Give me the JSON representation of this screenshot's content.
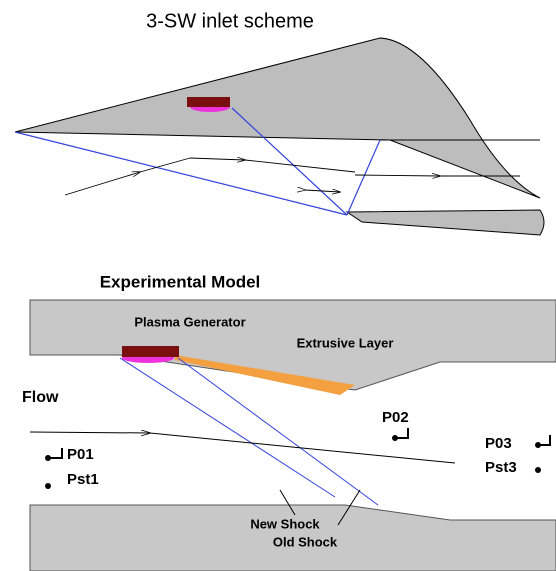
{
  "top": {
    "title": "3-SW inlet scheme"
  },
  "model": {
    "title": "Experimental Model",
    "labels": {
      "plasma": "Plasma Generator",
      "layer": "Extrusive Layer",
      "flow": "Flow",
      "p01": "P01",
      "pst1": "Pst1",
      "p02": "P02",
      "p03": "P03",
      "pst3": "Pst3",
      "new_shock": "New Shock",
      "old_shock": "Old Shock"
    }
  }
}
